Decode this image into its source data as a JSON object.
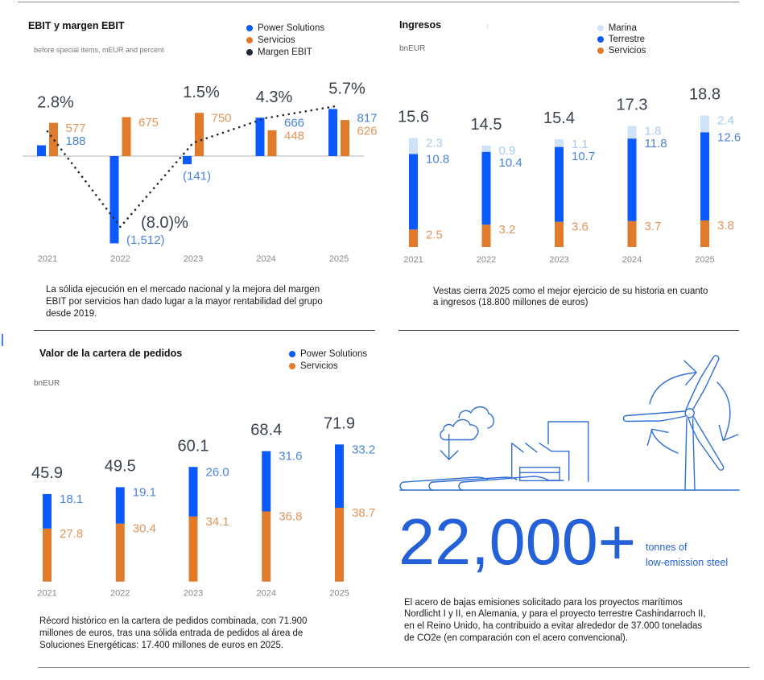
{
  "colors": {
    "power_solutions": "#0a5aff",
    "servicios": "#e07b2b",
    "marina": "#cfe3f8",
    "margen_ebit": "#1e2a3a",
    "value_label_blue": "#4a84d9",
    "value_label_orange": "#e2955c",
    "value_label_light": "#a9c9ef",
    "total_label": "#39424e",
    "year_label": "#8a8a8a",
    "accent": "#2461d8",
    "cursor": "#4a7fe0"
  },
  "chart_data": [
    {
      "type": "bar",
      "title": "EBIT y margen EBIT",
      "subtitle": "before special items, mEUR and percent",
      "unit": "mEUR",
      "legend": "top-right",
      "grid": false,
      "categories": [
        "2021",
        "2022",
        "2023",
        "2024",
        "2025"
      ],
      "series": [
        {
          "name": "Power Solutions",
          "kind": "bar",
          "color": "#0a5aff",
          "values": [
            188,
            -1512,
            -141,
            666,
            817
          ],
          "labels": [
            "188",
            "(1,512)",
            "(141)",
            "666",
            "817"
          ]
        },
        {
          "name": "Servicios",
          "kind": "bar",
          "color": "#e07b2b",
          "values": [
            577,
            675,
            750,
            448,
            626
          ],
          "labels": [
            "577",
            "675",
            "750",
            "448",
            "626"
          ]
        },
        {
          "name": "Margen EBIT",
          "kind": "line",
          "style": "dotted",
          "color": "#1e2a3a",
          "unit": "%",
          "values": [
            2.8,
            -8.0,
            1.5,
            4.3,
            5.7
          ],
          "labels": [
            "2.8%",
            "(8.0)%",
            "1.5%",
            "4.3%",
            "5.7%"
          ]
        }
      ]
    },
    {
      "type": "bar",
      "stacked": true,
      "title": "Ingresos",
      "subtitle": "bnEUR",
      "unit": "bnEUR",
      "legend": "top-right",
      "grid": false,
      "categories": [
        "2021",
        "2022",
        "2023",
        "2024",
        "2025"
      ],
      "series": [
        {
          "name": "Marina",
          "color": "#cfe3f8",
          "values": [
            2.3,
            0.9,
            1.1,
            1.8,
            2.4
          ],
          "labels": [
            "2.3",
            "0.9",
            "1.1",
            "1.8",
            "2.4"
          ]
        },
        {
          "name": "Terrestre",
          "color": "#0a5aff",
          "values": [
            10.8,
            10.4,
            10.7,
            11.8,
            12.6
          ],
          "labels": [
            "10.8",
            "10.4",
            "10.7",
            "11.8",
            "12.6"
          ]
        },
        {
          "name": "Servicios",
          "color": "#e07b2b",
          "values": [
            2.5,
            3.2,
            3.6,
            3.7,
            3.8
          ],
          "labels": [
            "2.5",
            "3.2",
            "3.6",
            "3.7",
            "3.8"
          ]
        }
      ],
      "totals": [
        15.6,
        14.5,
        15.4,
        17.3,
        18.8
      ],
      "total_labels": [
        "15.6",
        "14.5",
        "15.4",
        "17.3",
        "18.8"
      ]
    },
    {
      "type": "bar",
      "stacked": true,
      "title": "Valor de la cartera de pedidos",
      "subtitle": "bnEUR",
      "unit": "bnEUR",
      "legend": "top-right",
      "grid": false,
      "categories": [
        "2021",
        "2022",
        "2023",
        "2024",
        "2025"
      ],
      "series": [
        {
          "name": "Power Solutions",
          "color": "#0a5aff",
          "values": [
            18.1,
            19.1,
            26.0,
            31.6,
            33.2
          ],
          "labels": [
            "18.1",
            "19.1",
            "26.0",
            "31.6",
            "33.2"
          ]
        },
        {
          "name": "Servicios",
          "color": "#e07b2b",
          "values": [
            27.8,
            30.4,
            34.1,
            36.8,
            38.7
          ],
          "labels": [
            "27.8",
            "30.4",
            "34.1",
            "36.8",
            "38.7"
          ]
        }
      ],
      "totals": [
        45.9,
        49.5,
        60.1,
        68.4,
        71.9
      ],
      "total_labels": [
        "45.9",
        "49.5",
        "60.1",
        "68.4",
        "71.9"
      ]
    }
  ],
  "panels": {
    "ebit": {
      "note_lines": [
        "La sólida ejecución en el mercado nacional y la mejora del margen",
        "EBIT por servicios han dado lugar a la mayor rentabilidad del grupo",
        "desde 2019."
      ]
    },
    "ingresos": {
      "note_lines": [
        "Vestas cierra 2025 como el mejor ejercicio de su historia en cuanto",
        "a ingresos (18.800 millones de euros)"
      ]
    },
    "cartera": {
      "note_lines": [
        "Récord histórico en la cartera de pedidos combinada, con 71.900",
        "millones de euros, tras una sólida entrada de pedidos al área de",
        "Soluciones Energéticas: 17.400 millones de euros en 2025."
      ]
    },
    "steel": {
      "value": "22,000+",
      "unit_lines": [
        "tonnes of",
        "low-emission steel"
      ],
      "illustration_icons": [
        "cloud-icon",
        "arrow-down-icon",
        "factory-icon",
        "turbine-blades-icon",
        "wind-turbine-icon",
        "rotation-arrows-icon"
      ],
      "note_lines": [
        "El acero de bajas emisiones solicitado para los proyectos marítimos",
        "Nordlicht I y II, en Alemania, y para el proyecto terrestre Cashindarroch II,",
        "en el Reino Unido, ha contribuido a evitar alrededor de 37.000 toneladas",
        "de CO2e (en comparación con el acero convencional)."
      ]
    }
  }
}
